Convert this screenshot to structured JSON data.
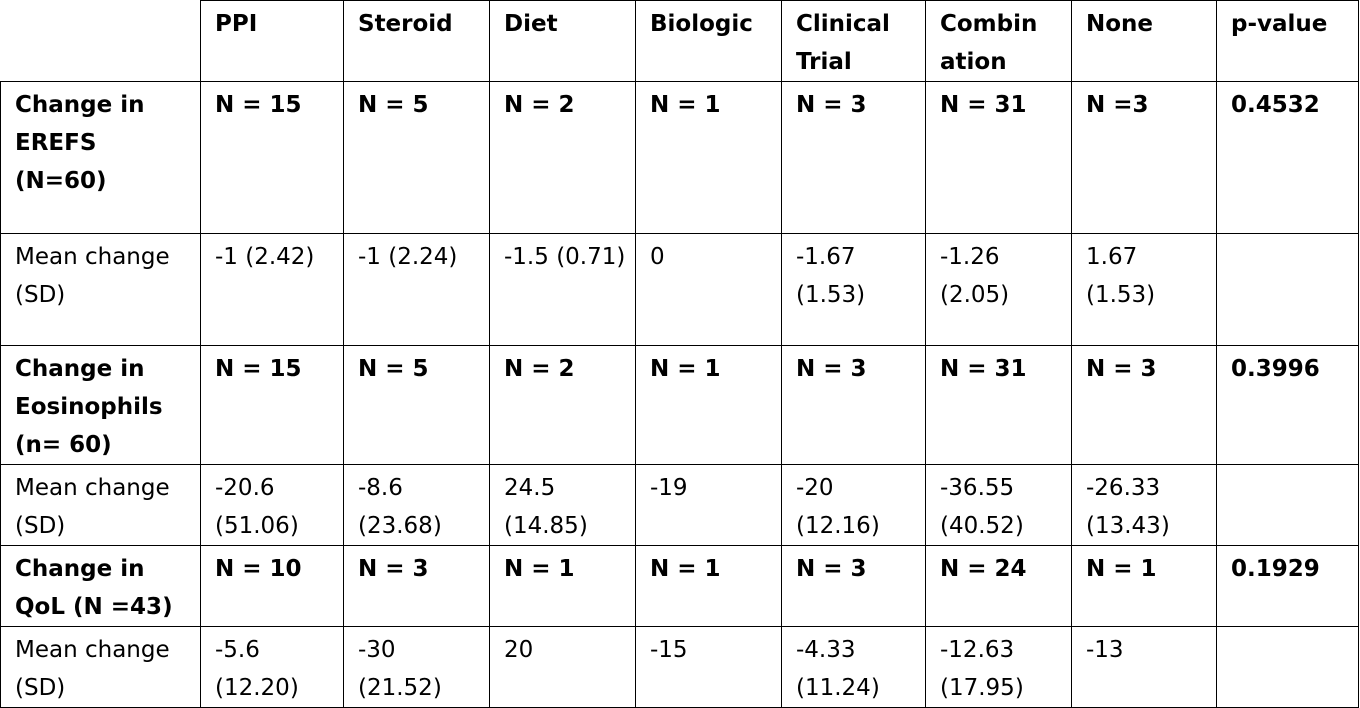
{
  "header": [
    "",
    "PPI",
    "Steroid",
    "Diet",
    "Biologic",
    "Clinical Trial",
    "Combin ation",
    "None",
    "p-value"
  ],
  "rows": [
    {
      "kind": "group",
      "cells": [
        "Change in EREFS (N=60)",
        "N = 15",
        "N = 5",
        "N = 2",
        "N = 1",
        "N = 3",
        "N = 31",
        "N =3",
        "0.4532"
      ]
    },
    {
      "kind": "mean",
      "cells": [
        "Mean change (SD)",
        "-1 (2.42)",
        "-1 (2.24)",
        "-1.5 (0.71)",
        "0",
        "-1.67 (1.53)",
        "-1.26 (2.05)",
        "1.67 (1.53)",
        ""
      ]
    },
    {
      "kind": "group",
      "cells": [
        "Change in Eosinophils (n= 60)",
        "N = 15",
        "N = 5",
        "N = 2",
        "N = 1",
        "N = 3",
        "N = 31",
        "N = 3",
        "0.3996"
      ]
    },
    {
      "kind": "mean",
      "cells": [
        "Mean change (SD)",
        "-20.6 (51.06)",
        "-8.6 (23.68)",
        "24.5 (14.85)",
        "-19",
        "-20 (12.16)",
        "-36.55 (40.52)",
        "-26.33 (13.43)",
        ""
      ]
    },
    {
      "kind": "group",
      "cells": [
        "Change in QoL (N =43)",
        "N = 10",
        "N = 3",
        "N = 1",
        "N = 1",
        "N = 3",
        "N = 24",
        "N = 1",
        "0.1929"
      ]
    },
    {
      "kind": "mean",
      "cells": [
        "Mean change (SD)",
        "-5.6 (12.20)",
        "-30 (21.52)",
        "20",
        "-15",
        "-4.33 (11.24)",
        "-12.63 (17.95)",
        "-13",
        ""
      ]
    }
  ]
}
